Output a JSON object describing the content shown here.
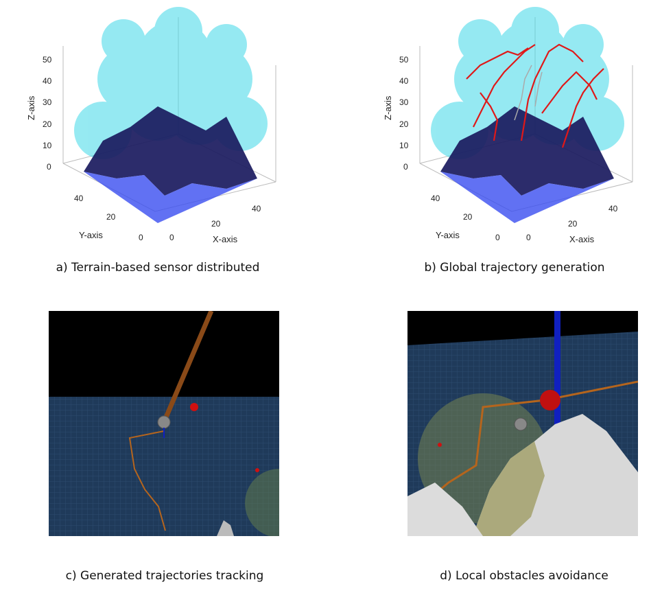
{
  "panels": [
    {
      "caption": "a) Terrain-based sensor distributed",
      "z_label": "Z-axis",
      "y_label": "Y-axis",
      "x_label": "X-axis",
      "z_ticks": [
        "0",
        "10",
        "20",
        "30",
        "40",
        "50"
      ],
      "y_ticks": [
        "0",
        "20",
        "40"
      ],
      "x_ticks": [
        "0",
        "20",
        "40"
      ]
    },
    {
      "caption": "b) Global trajectory generation",
      "z_label": "Z-axis",
      "y_label": "Y-axis",
      "x_label": "X-axis",
      "z_ticks": [
        "0",
        "10",
        "20",
        "30",
        "40",
        "50"
      ],
      "y_ticks": [
        "0",
        "20",
        "40"
      ],
      "x_ticks": [
        "0",
        "20",
        "40"
      ]
    },
    {
      "caption": "c) Generated trajectories tracking"
    },
    {
      "caption": "d) Local obstacles avoidance"
    }
  ],
  "colors": {
    "sensor_spheres": "#40d8e8",
    "terrain": "#1a1a5e",
    "ground": "#1f3a5a",
    "trajectory_global": "#e01818",
    "trajectory_local": "#b5651d",
    "sky": "#000000",
    "goal_marker": "#d01010",
    "vertical_pole": "#1020c0"
  }
}
